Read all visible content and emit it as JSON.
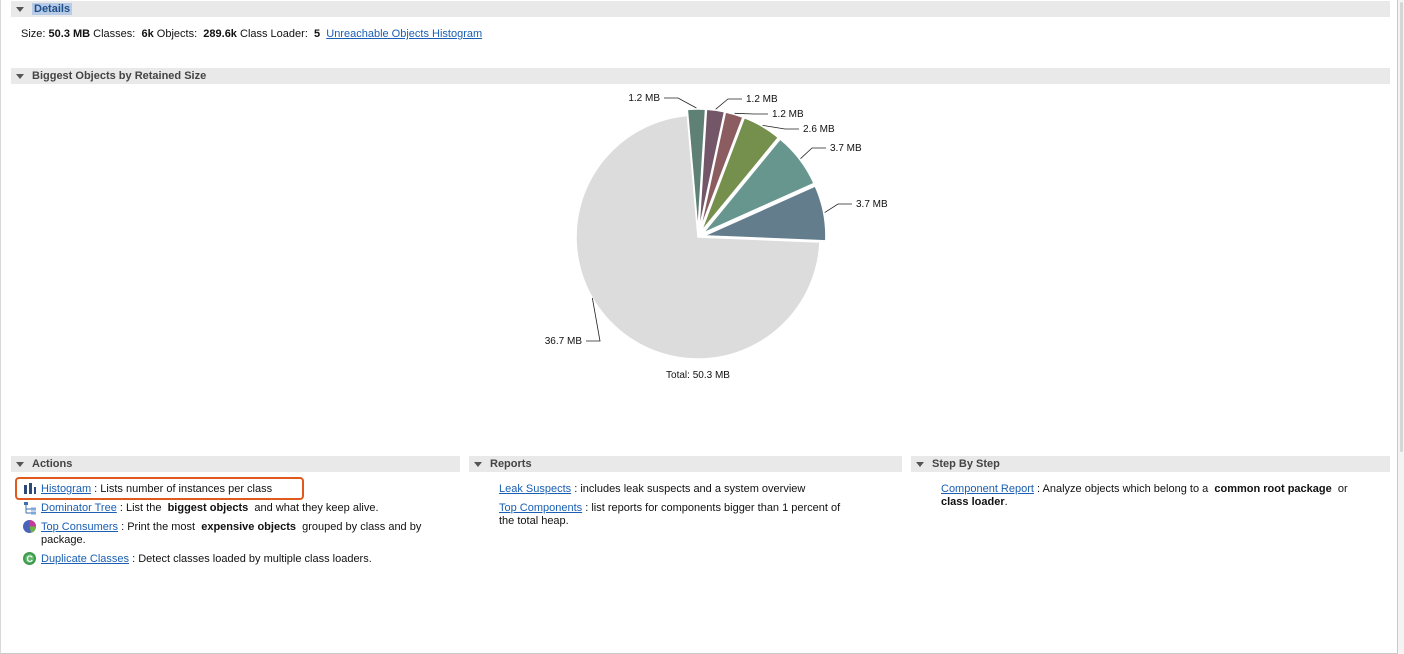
{
  "details": {
    "header": "Details",
    "size_label": "Size:",
    "size_value": "50.3 MB",
    "classes_label": "Classes:",
    "classes_value": "6k",
    "objects_label": "Objects:",
    "objects_value": "289.6k",
    "classloader_label": "Class Loader:",
    "classloader_value": "5",
    "unreachable_link": "Unreachable Objects Histogram"
  },
  "biggest_objects": {
    "header": "Biggest Objects by Retained Size"
  },
  "chart_data": {
    "type": "pie",
    "total_label": "Total: 50.3 MB",
    "slices": [
      {
        "label": "36.7 MB",
        "value": 36.7,
        "color": "#dcdcdc",
        "exploded": false
      },
      {
        "label": "3.7 MB",
        "value": 3.7,
        "color": "#647d8d",
        "exploded": true
      },
      {
        "label": "3.7 MB",
        "value": 3.7,
        "color": "#67968f",
        "exploded": true
      },
      {
        "label": "2.6 MB",
        "value": 2.6,
        "color": "#74904c",
        "exploded": true
      },
      {
        "label": "1.2 MB",
        "value": 1.2,
        "color": "#8c5d60",
        "exploded": true
      },
      {
        "label": "1.2 MB",
        "value": 1.2,
        "color": "#735668",
        "exploded": true
      },
      {
        "label": "1.2 MB",
        "value": 1.2,
        "color": "#5f8175",
        "exploded": true
      }
    ]
  },
  "actions": {
    "header": "Actions",
    "items": [
      {
        "link": "Histogram",
        "sep": " : ",
        "text": "Lists number of instances per class",
        "icon": "histogram-icon"
      },
      {
        "link": "Dominator Tree",
        "sep": " : ",
        "text_pre": "List the ",
        "bold": "biggest objects",
        "text_post": " and what they keep alive.",
        "icon": "dominator-tree-icon"
      },
      {
        "link": "Top Consumers",
        "sep": " : ",
        "text_pre": "Print the most ",
        "bold": "expensive objects",
        "text_post": " grouped by class and by",
        "text_line2": "package.",
        "icon": "top-consumers-icon"
      },
      {
        "link": "Duplicate Classes",
        "sep": " : ",
        "text": "Detect classes loaded by multiple class loaders.",
        "icon": "duplicate-classes-icon"
      }
    ]
  },
  "reports": {
    "header": "Reports",
    "items": [
      {
        "link": "Leak Suspects",
        "sep": " : ",
        "text": "includes leak suspects and a system overview"
      },
      {
        "link": "Top Components",
        "sep": " : ",
        "text": "list reports for components bigger than 1 percent of",
        "text_line2": "the total heap."
      }
    ]
  },
  "step_by_step": {
    "header": "Step By Step",
    "items": [
      {
        "link": "Component Report",
        "sep": " : ",
        "text_pre": "Analyze objects which belong to a ",
        "bold": "common root package",
        "text_post": " or",
        "bold_line2": "class loader",
        "text_line2_post": "."
      }
    ]
  }
}
